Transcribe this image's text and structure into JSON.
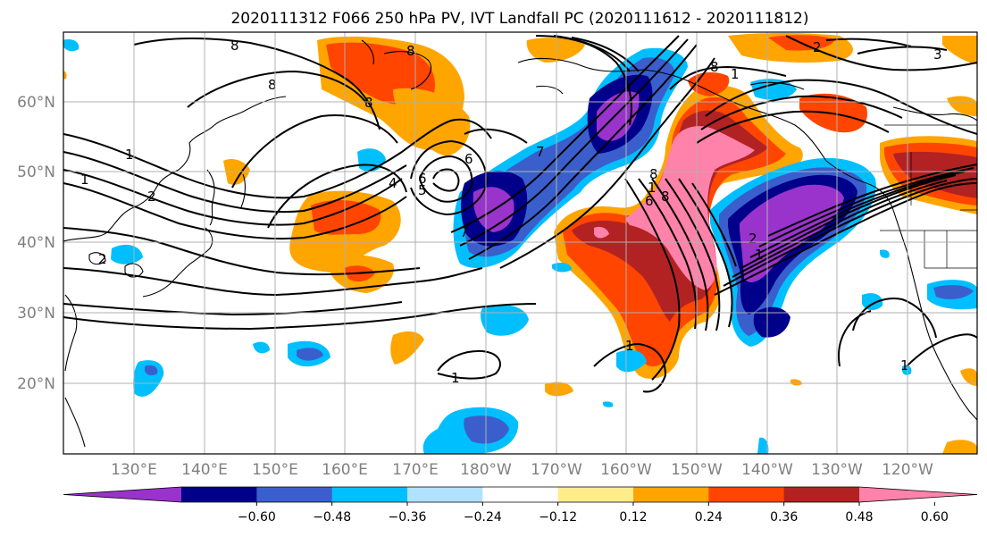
{
  "title": "2020111312 F066 250 hPa PV, IVT Landfall PC (2020111612 - 2020111812)",
  "lat_labels": [
    "60°N",
    "50°N",
    "40°N",
    "30°N",
    "20°N"
  ],
  "lon_labels": [
    "130°E",
    "140°E",
    "150°E",
    "160°E",
    "170°E",
    "180°W",
    "170°W",
    "160°W",
    "150°W",
    "140°W",
    "130°W",
    "120°W"
  ],
  "colorbar": {
    "colors": [
      "#9933cc",
      "#00008b",
      "#3a5fcd",
      "#00bfff",
      "#b0e2ff",
      "#ffffff",
      "#ffec8b",
      "#ffa500",
      "#ff4500",
      "#b22222",
      "#ff82ab"
    ],
    "tick_labels": [
      "-0.60",
      "-0.48",
      "-0.36",
      "-0.24",
      "-0.12",
      "0.12",
      "0.24",
      "0.36",
      "0.48",
      "0.60"
    ]
  },
  "contour_labels": [
    "8",
    "8",
    "1",
    "1",
    "2",
    "2",
    "4",
    "6",
    "5",
    "6",
    "7",
    "8",
    "8",
    "1",
    "1",
    "6",
    "8",
    "2",
    "1",
    "3",
    "2",
    "1",
    "1",
    "8",
    "1",
    "8",
    "7"
  ],
  "colors": {
    "grid": "#b0b0b0",
    "contour": "#000000",
    "coast": "#000000",
    "land": "#ffffff",
    "ocean": "#ffffff"
  }
}
